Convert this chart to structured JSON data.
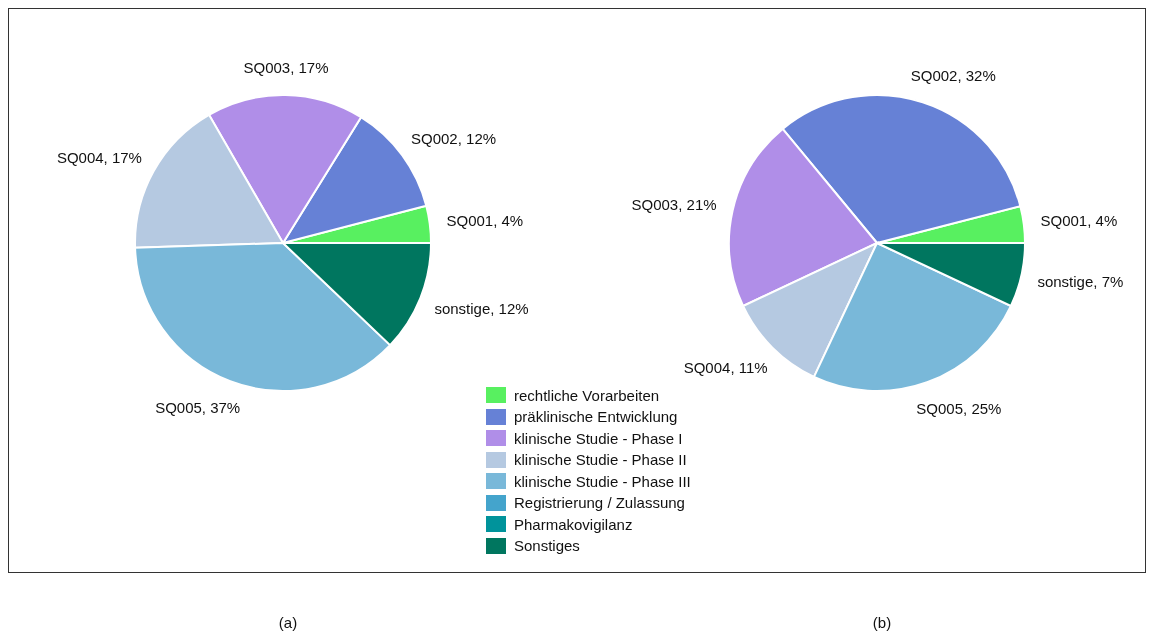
{
  "chart_data": [
    {
      "type": "pie",
      "categories": [
        "rechtliche Vorarbeiten",
        "präklinische Entwicklung",
        "klinische Studie - Phase I",
        "klinische Studie - Phase II",
        "klinische Studie - Phase III",
        "Registrierung / Zulassung",
        "Pharmakovigilanz",
        "Sonstiges"
      ],
      "values": [
        4,
        12,
        17,
        17,
        37,
        0,
        0,
        12
      ],
      "value_labels": [
        "SQ001, 4%",
        "SQ002, 12%",
        "SQ003, 17%",
        "SQ004, 17%",
        "SQ005, 37%",
        null,
        null,
        "sonstige, 12%"
      ],
      "colors": [
        "#58f060",
        "#6681d6",
        "#b08ee8",
        "#b5c9e1",
        "#79b8d9",
        "#44a4cc",
        "#00939b",
        "#00765f"
      ],
      "legend": "bottom right",
      "annotations": [
        "(a)"
      ]
    },
    {
      "type": "pie",
      "categories": [
        null,
        null,
        null,
        null,
        null,
        null,
        null,
        null
      ],
      "values": [
        4,
        32,
        21,
        11,
        25,
        0,
        0,
        7
      ],
      "value_labels": [
        "SQ001, 4%",
        "SQ002, 32%",
        "SQ003, 21%",
        "SQ004, 11%",
        "SQ005, 25%",
        null,
        null,
        "sonstige, 7%"
      ],
      "colors": [
        "#58f060",
        "#6681d6",
        "#b08ee8",
        "#b5c9e1",
        "#79b8d9",
        "#44a4cc",
        "#00939b",
        "#00765f"
      ],
      "annotations": [
        "(b)"
      ]
    }
  ]
}
